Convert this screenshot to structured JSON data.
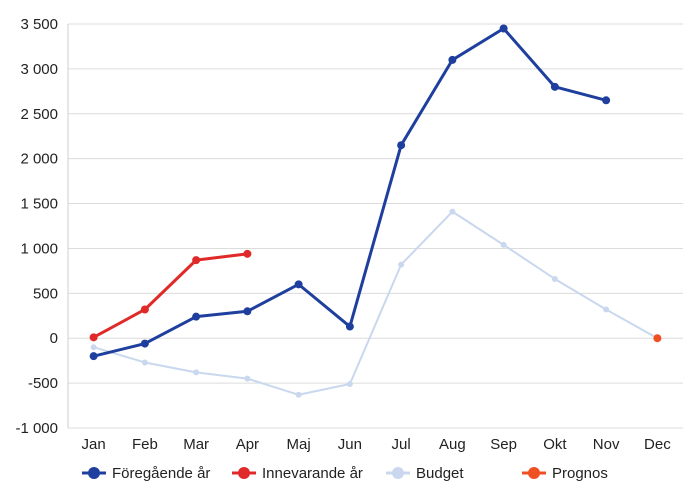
{
  "chart_data": {
    "type": "line",
    "categories": [
      "Jan",
      "Feb",
      "Mar",
      "Apr",
      "Maj",
      "Jun",
      "Jul",
      "Aug",
      "Sep",
      "Okt",
      "Nov",
      "Dec"
    ],
    "ylim": [
      -1000,
      3500
    ],
    "yticks": [
      -1000,
      -500,
      0,
      500,
      1000,
      1500,
      2000,
      2500,
      3000,
      3500
    ],
    "ytick_labels": [
      "-1 000",
      "-500",
      "0",
      "500",
      "1 000",
      "1 500",
      "2 000",
      "2 500",
      "3 000",
      "3 500"
    ],
    "grid": true,
    "legend_position": "bottom",
    "series": [
      {
        "name": "Budget",
        "color": "#c9d8ee",
        "values": [
          -100,
          -270,
          -380,
          -450,
          -630,
          -510,
          820,
          1410,
          1040,
          660,
          320,
          0
        ]
      },
      {
        "name": "Föregående år",
        "color": "#1f3f9e",
        "values": [
          -200,
          -60,
          240,
          300,
          600,
          130,
          2150,
          3100,
          3450,
          2800,
          2650,
          null
        ]
      },
      {
        "name": "Innevarande år",
        "color": "#e02a2a",
        "values": [
          10,
          320,
          870,
          940,
          null,
          null,
          null,
          null,
          null,
          null,
          null,
          null
        ]
      },
      {
        "name": "Prognos",
        "color": "#f04e23",
        "values": [
          null,
          null,
          null,
          null,
          null,
          null,
          null,
          null,
          null,
          null,
          null,
          0
        ]
      }
    ],
    "legend": [
      {
        "label": "Föregående år",
        "color": "#1f3f9e"
      },
      {
        "label": "Innevarande år",
        "color": "#e02a2a"
      },
      {
        "label": "Budget",
        "color": "#c9d8ee"
      },
      {
        "label": "Prognos",
        "color": "#f04e23"
      }
    ]
  }
}
